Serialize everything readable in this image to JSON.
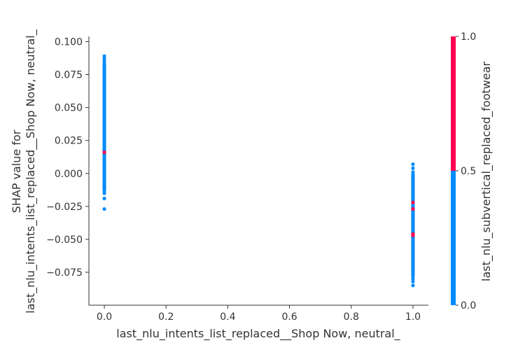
{
  "chart_data": {
    "type": "scatter",
    "title": "",
    "xlabel": "last_nlu_intents_list_replaced__Shop Now, neutral_",
    "ylabel_lines": [
      "SHAP value for",
      "last_nlu_intents_list_replaced__Shop Now, neutral_"
    ],
    "xlim": [
      -0.05,
      1.05
    ],
    "ylim": [
      -0.1,
      0.104
    ],
    "x_ticks": [
      0.0,
      0.2,
      0.4,
      0.6,
      0.8,
      1.0
    ],
    "x_tick_labels": [
      "0.0",
      "0.2",
      "0.4",
      "0.6",
      "0.8",
      "1.0"
    ],
    "y_ticks": [
      0.1,
      0.075,
      0.05,
      0.025,
      0.0,
      -0.025,
      -0.05,
      -0.075
    ],
    "y_tick_labels": [
      "0.100",
      "0.075",
      "0.050",
      "0.025",
      "0.000",
      "−0.025",
      "−0.050",
      "−0.075"
    ],
    "colorbar": {
      "label": "last_nlu_subvertical_replaced_footwear",
      "ticks": [
        1.0,
        0.5,
        0.0
      ],
      "tick_labels": [
        "1.0",
        "0.5",
        "0.0"
      ],
      "low_color": "#008bfb",
      "high_color": "#ff0052"
    },
    "series": [
      {
        "x": 0.0,
        "feature_value": 0,
        "color": "#008bfb",
        "y": [
          0.089,
          0.087,
          0.085,
          0.083,
          0.082,
          0.081,
          0.08,
          0.079,
          0.078,
          0.077,
          0.076,
          0.075,
          0.074,
          0.073,
          0.072,
          0.071,
          0.07,
          0.069,
          0.068,
          0.067,
          0.066,
          0.065,
          0.064,
          0.063,
          0.062,
          0.061,
          0.06,
          0.059,
          0.058,
          0.057,
          0.056,
          0.055,
          0.054,
          0.053,
          0.052,
          0.051,
          0.05,
          0.049,
          0.048,
          0.047,
          0.046,
          0.045,
          0.044,
          0.043,
          0.042,
          0.041,
          0.04,
          0.039,
          0.038,
          0.037,
          0.036,
          0.035,
          0.034,
          0.033,
          0.032,
          0.031,
          0.03,
          0.029,
          0.028,
          0.027,
          0.026,
          0.025,
          0.024,
          0.023,
          0.022,
          0.021,
          0.02,
          0.019,
          0.018,
          0.017,
          0.015,
          0.014,
          0.013,
          0.012,
          0.011,
          0.01,
          0.009,
          0.008,
          0.007,
          0.006,
          0.005,
          0.004,
          0.003,
          0.002,
          0.001,
          0.0,
          -0.001,
          -0.002,
          -0.003,
          -0.004,
          -0.005,
          -0.006,
          -0.007,
          -0.008,
          -0.009,
          -0.01,
          -0.011,
          -0.012,
          -0.013,
          -0.015,
          -0.019,
          -0.027
        ]
      },
      {
        "x": 0.0,
        "feature_value": 1,
        "color": "#ff0052",
        "y": [
          0.016
        ]
      },
      {
        "x": 1.0,
        "feature_value": 0,
        "color": "#008bfb",
        "y": [
          0.007,
          0.004,
          0.001,
          -0.001,
          -0.002,
          -0.003,
          -0.004,
          -0.005,
          -0.006,
          -0.007,
          -0.008,
          -0.009,
          -0.01,
          -0.011,
          -0.012,
          -0.013,
          -0.014,
          -0.015,
          -0.016,
          -0.017,
          -0.018,
          -0.019,
          -0.02,
          -0.021,
          -0.023,
          -0.024,
          -0.025,
          -0.026,
          -0.028,
          -0.029,
          -0.03,
          -0.031,
          -0.032,
          -0.033,
          -0.034,
          -0.035,
          -0.036,
          -0.037,
          -0.038,
          -0.039,
          -0.04,
          -0.041,
          -0.042,
          -0.043,
          -0.044,
          -0.045,
          -0.048,
          -0.049,
          -0.05,
          -0.051,
          -0.052,
          -0.053,
          -0.054,
          -0.055,
          -0.056,
          -0.057,
          -0.058,
          -0.059,
          -0.06,
          -0.061,
          -0.062,
          -0.063,
          -0.064,
          -0.065,
          -0.066,
          -0.067,
          -0.068,
          -0.069,
          -0.07,
          -0.071,
          -0.072,
          -0.073,
          -0.074,
          -0.075,
          -0.076,
          -0.077,
          -0.078,
          -0.08,
          -0.082,
          -0.085
        ]
      },
      {
        "x": 1.0,
        "feature_value": 1,
        "color": "#ff0052",
        "y": [
          -0.022,
          -0.027,
          -0.046,
          -0.047
        ]
      }
    ]
  }
}
